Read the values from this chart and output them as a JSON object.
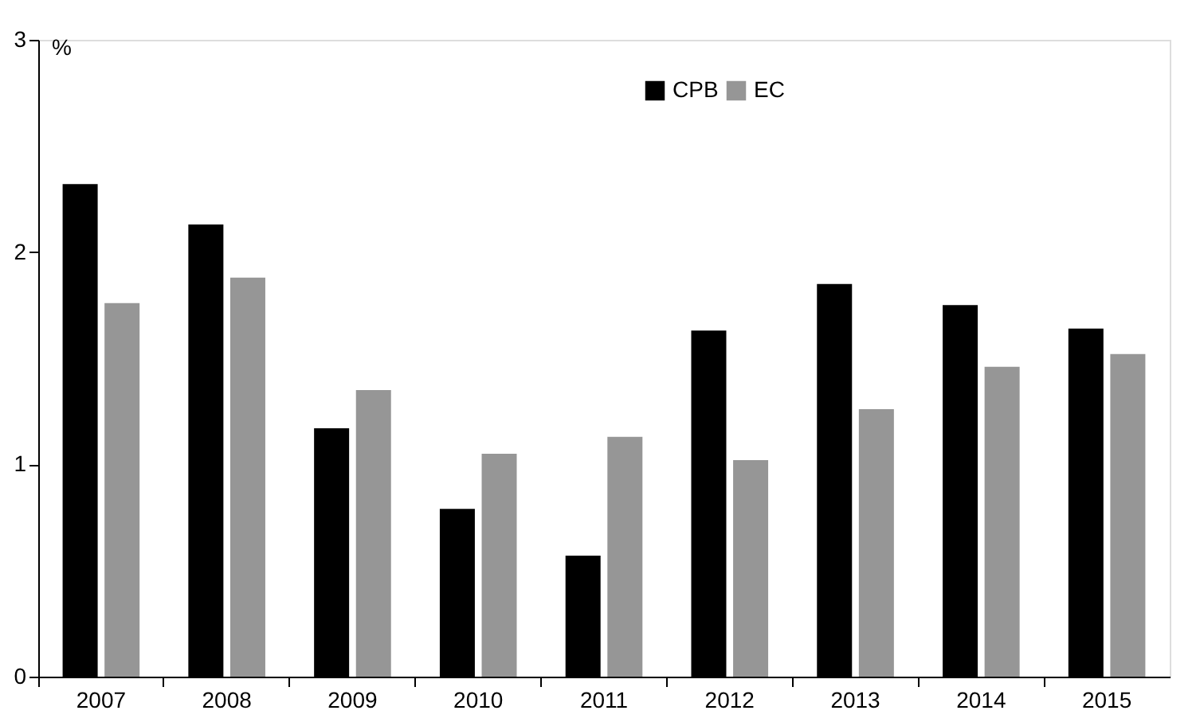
{
  "chart_data": {
    "type": "bar",
    "ylabel": "%",
    "categories": [
      "2007",
      "2008",
      "2009",
      "2010",
      "2011",
      "2012",
      "2013",
      "2014",
      "2015"
    ],
    "series": [
      {
        "name": "CPB",
        "color": "#000000",
        "values": [
          2.32,
          2.13,
          1.17,
          0.79,
          0.57,
          1.63,
          1.85,
          1.75,
          1.64
        ]
      },
      {
        "name": "EC",
        "color": "#969696",
        "values": [
          1.76,
          1.88,
          1.35,
          1.05,
          1.13,
          1.02,
          1.26,
          1.46,
          1.52
        ]
      }
    ],
    "ylim": [
      0,
      3
    ],
    "yticks": [
      0,
      1,
      2,
      3
    ],
    "grid": false,
    "legend": "top right"
  }
}
